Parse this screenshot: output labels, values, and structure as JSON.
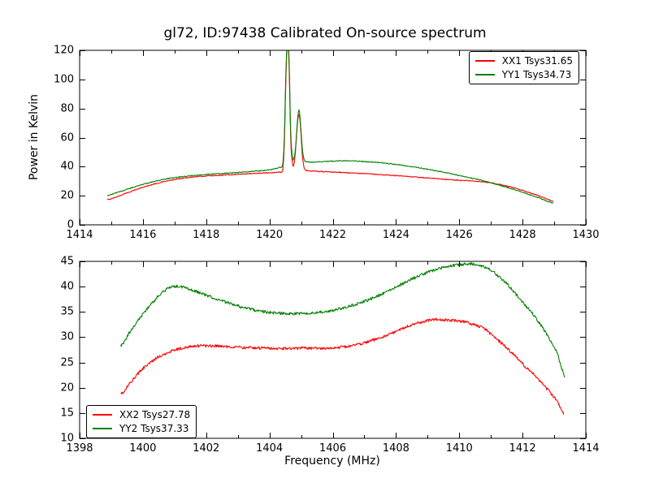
{
  "figure": {
    "background_color": "#ffffff",
    "frame_color": "#000000",
    "series_colors": {
      "xx": "#ff0000",
      "yy": "#008000"
    }
  },
  "chart_data": [
    {
      "type": "line",
      "title": "gl72, ID:97438 Calibrated On-source spectrum",
      "xlabel": "",
      "ylabel": "Power in Kelvin",
      "xlim": [
        1414,
        1430
      ],
      "ylim": [
        0,
        120
      ],
      "xticks": [
        1414,
        1416,
        1418,
        1420,
        1422,
        1424,
        1426,
        1428,
        1430
      ],
      "xminor_ticks": [
        1415,
        1417,
        1419,
        1421,
        1423,
        1425,
        1427,
        1429
      ],
      "yticks": [
        0,
        20,
        40,
        60,
        80,
        100,
        120
      ],
      "grid": false,
      "legend_position": "upper-right",
      "series": [
        {
          "name": "XX1",
          "legend_label": "XX1 Tsys31.65",
          "color": "#ff0000",
          "noise": 0.3,
          "points": [
            [
              1414.87,
              17.3
            ],
            [
              1415.2,
              19.5
            ],
            [
              1415.6,
              22.8
            ],
            [
              1416.0,
              25.8
            ],
            [
              1416.4,
              28.3
            ],
            [
              1416.8,
              30.3
            ],
            [
              1417.2,
              31.8
            ],
            [
              1417.6,
              32.9
            ],
            [
              1418.0,
              33.6
            ],
            [
              1418.5,
              34.2
            ],
            [
              1419.0,
              34.8
            ],
            [
              1419.5,
              35.3
            ],
            [
              1420.0,
              35.8
            ],
            [
              1420.3,
              36.3
            ],
            [
              1420.42,
              38.0
            ],
            [
              1420.47,
              55.0
            ],
            [
              1420.52,
              100.0
            ],
            [
              1420.57,
              128.0
            ],
            [
              1420.62,
              110.0
            ],
            [
              1420.67,
              60.0
            ],
            [
              1420.72,
              44.0
            ],
            [
              1420.76,
              40.5
            ],
            [
              1420.82,
              50.0
            ],
            [
              1420.88,
              68.0
            ],
            [
              1420.93,
              76.0
            ],
            [
              1420.98,
              68.0
            ],
            [
              1421.04,
              48.0
            ],
            [
              1421.1,
              39.0
            ],
            [
              1421.2,
              37.2
            ],
            [
              1421.5,
              36.8
            ],
            [
              1422.0,
              36.3
            ],
            [
              1422.5,
              35.8
            ],
            [
              1423.0,
              35.2
            ],
            [
              1423.5,
              34.6
            ],
            [
              1424.0,
              33.8
            ],
            [
              1424.5,
              33.0
            ],
            [
              1425.0,
              32.2
            ],
            [
              1425.5,
              31.4
            ],
            [
              1426.0,
              30.6
            ],
            [
              1426.5,
              30.0
            ],
            [
              1427.0,
              28.8
            ],
            [
              1427.4,
              27.2
            ],
            [
              1427.8,
              25.0
            ],
            [
              1428.2,
              22.3
            ],
            [
              1428.6,
              19.3
            ],
            [
              1428.97,
              16.3
            ]
          ]
        },
        {
          "name": "YY1",
          "legend_label": "YY1 Tsys34.73",
          "color": "#008000",
          "noise": 0.3,
          "points": [
            [
              1414.87,
              20.2
            ],
            [
              1415.2,
              22.3
            ],
            [
              1415.6,
              25.2
            ],
            [
              1416.0,
              27.8
            ],
            [
              1416.4,
              30.0
            ],
            [
              1416.8,
              31.8
            ],
            [
              1417.2,
              33.0
            ],
            [
              1417.6,
              33.9
            ],
            [
              1418.0,
              34.6
            ],
            [
              1418.5,
              35.3
            ],
            [
              1419.0,
              36.0
            ],
            [
              1419.5,
              36.8
            ],
            [
              1420.0,
              37.8
            ],
            [
              1420.3,
              39.3
            ],
            [
              1420.42,
              41.5
            ],
            [
              1420.47,
              60.0
            ],
            [
              1420.52,
              105.0
            ],
            [
              1420.57,
              128.0
            ],
            [
              1420.62,
              115.0
            ],
            [
              1420.67,
              65.0
            ],
            [
              1420.72,
              47.5
            ],
            [
              1420.76,
              45.2
            ],
            [
              1420.82,
              52.0
            ],
            [
              1420.88,
              70.0
            ],
            [
              1420.93,
              79.0
            ],
            [
              1420.98,
              70.0
            ],
            [
              1421.04,
              52.0
            ],
            [
              1421.1,
              44.5
            ],
            [
              1421.2,
              43.2
            ],
            [
              1421.5,
              43.3
            ],
            [
              1422.0,
              43.8
            ],
            [
              1422.3,
              44.0
            ],
            [
              1422.7,
              43.9
            ],
            [
              1423.0,
              43.5
            ],
            [
              1423.5,
              42.7
            ],
            [
              1424.0,
              41.5
            ],
            [
              1424.5,
              40.0
            ],
            [
              1425.0,
              38.2
            ],
            [
              1425.5,
              36.2
            ],
            [
              1426.0,
              33.9
            ],
            [
              1426.5,
              31.6
            ],
            [
              1427.0,
              29.0
            ],
            [
              1427.4,
              26.5
            ],
            [
              1427.8,
              23.8
            ],
            [
              1428.2,
              20.9
            ],
            [
              1428.6,
              17.9
            ],
            [
              1428.97,
              14.9
            ]
          ]
        }
      ]
    },
    {
      "type": "line",
      "title": "",
      "xlabel": "Frequency (MHz)",
      "ylabel": "",
      "xlim": [
        1398,
        1414
      ],
      "ylim": [
        10,
        45
      ],
      "xticks": [
        1398,
        1400,
        1402,
        1404,
        1406,
        1408,
        1410,
        1412,
        1414
      ],
      "xminor_ticks": [
        1399,
        1401,
        1403,
        1405,
        1407,
        1409,
        1411,
        1413
      ],
      "yticks": [
        10,
        15,
        20,
        25,
        30,
        35,
        40,
        45
      ],
      "grid": false,
      "legend_position": "lower-left",
      "series": [
        {
          "name": "XX2",
          "legend_label": "XX2 Tsys27.78",
          "color": "#ff0000",
          "noise": 0.28,
          "points": [
            [
              1399.3,
              18.7
            ],
            [
              1399.6,
              21.0
            ],
            [
              1400.0,
              23.8
            ],
            [
              1400.4,
              25.7
            ],
            [
              1400.8,
              27.0
            ],
            [
              1401.2,
              27.8
            ],
            [
              1401.6,
              28.2
            ],
            [
              1402.0,
              28.3
            ],
            [
              1402.5,
              28.2
            ],
            [
              1403.0,
              28.0
            ],
            [
              1403.5,
              27.9
            ],
            [
              1404.0,
              27.8
            ],
            [
              1404.5,
              27.75
            ],
            [
              1405.0,
              27.8
            ],
            [
              1405.5,
              27.8
            ],
            [
              1406.0,
              27.9
            ],
            [
              1406.5,
              28.2
            ],
            [
              1407.0,
              28.9
            ],
            [
              1407.5,
              29.9
            ],
            [
              1408.0,
              31.1
            ],
            [
              1408.4,
              32.2
            ],
            [
              1408.8,
              33.0
            ],
            [
              1409.2,
              33.5
            ],
            [
              1409.6,
              33.4
            ],
            [
              1410.0,
              33.2
            ],
            [
              1410.4,
              32.6
            ],
            [
              1410.8,
              31.6
            ],
            [
              1411.2,
              29.5
            ],
            [
              1411.6,
              27.3
            ],
            [
              1412.0,
              24.7
            ],
            [
              1412.4,
              22.4
            ],
            [
              1412.8,
              19.6
            ],
            [
              1413.1,
              17.3
            ],
            [
              1413.3,
              14.8
            ]
          ]
        },
        {
          "name": "YY2",
          "legend_label": "YY2 Tsys37.33",
          "color": "#008000",
          "noise": 0.28,
          "points": [
            [
              1399.3,
              28.3
            ],
            [
              1399.6,
              31.2
            ],
            [
              1400.0,
              34.5
            ],
            [
              1400.3,
              36.8
            ],
            [
              1400.6,
              38.8
            ],
            [
              1400.9,
              39.9
            ],
            [
              1401.2,
              40.0
            ],
            [
              1401.5,
              39.4
            ],
            [
              1402.0,
              38.3
            ],
            [
              1402.5,
              37.2
            ],
            [
              1403.0,
              36.2
            ],
            [
              1403.5,
              35.4
            ],
            [
              1404.0,
              34.9
            ],
            [
              1404.5,
              34.7
            ],
            [
              1405.0,
              34.7
            ],
            [
              1405.5,
              34.9
            ],
            [
              1406.0,
              35.3
            ],
            [
              1406.5,
              36.1
            ],
            [
              1407.0,
              37.1
            ],
            [
              1407.5,
              38.4
            ],
            [
              1408.0,
              39.9
            ],
            [
              1408.5,
              41.5
            ],
            [
              1409.0,
              42.8
            ],
            [
              1409.5,
              43.8
            ],
            [
              1410.0,
              44.3
            ],
            [
              1410.4,
              44.5
            ],
            [
              1410.8,
              43.9
            ],
            [
              1411.2,
              42.3
            ],
            [
              1411.6,
              39.9
            ],
            [
              1412.0,
              36.9
            ],
            [
              1412.4,
              34.0
            ],
            [
              1412.8,
              30.3
            ],
            [
              1413.1,
              26.8
            ],
            [
              1413.33,
              22.3
            ]
          ]
        }
      ]
    }
  ]
}
